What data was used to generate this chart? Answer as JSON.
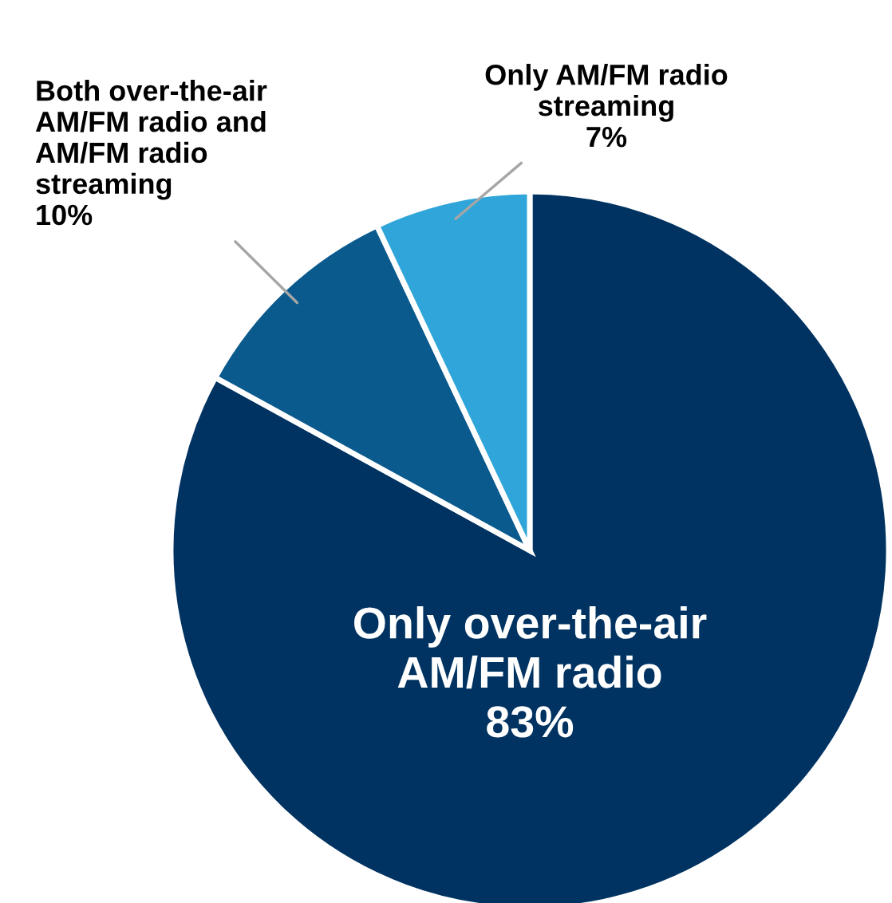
{
  "chart_data": {
    "type": "pie",
    "categories": [
      "Only over-the-air\nAM/FM radio",
      "Both over-the-air\nAM/FM radio and\nAM/FM radio\nstreaming",
      "Only AM/FM radio\nstreaming"
    ],
    "values": [
      83,
      10,
      7
    ],
    "colors": [
      "#003361",
      "#0b5a8e",
      "#2fa5d9"
    ],
    "value_labels": [
      "83%",
      "10%",
      "7%"
    ]
  }
}
